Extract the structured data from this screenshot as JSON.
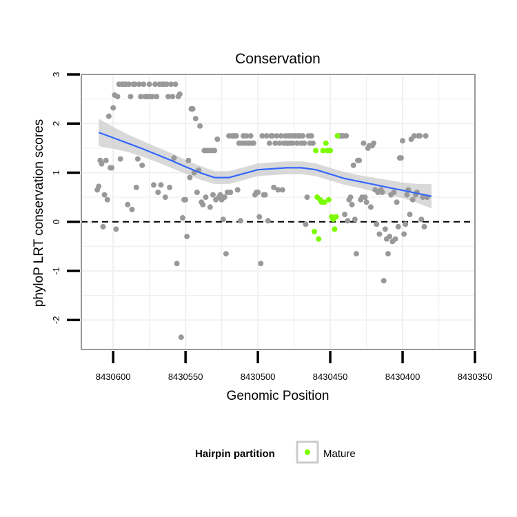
{
  "chart_data": {
    "type": "scatter",
    "title": "Conservation",
    "xlabel": "Genomic Position",
    "ylabel": "phyloP LRT conservation scores",
    "x_reversed": true,
    "xlim": [
      8430622,
      8430350
    ],
    "ylim": [
      -2.6,
      3.0
    ],
    "x_ticks": [
      8430600,
      8430550,
      8430500,
      8430450,
      8430400,
      8430350
    ],
    "x_tick_labels": [
      "8430600",
      "8430550",
      "8430500",
      "8430450",
      "8430400",
      "8430350"
    ],
    "y_ticks": [
      -2,
      -1,
      0,
      1,
      2,
      3
    ],
    "y_tick_labels": [
      "-2",
      "-1",
      "0",
      "1",
      "2",
      "3"
    ],
    "grid": true,
    "reference_line": {
      "y": 0,
      "style": "dashed"
    },
    "colors": {
      "points": "#999999",
      "mature": "#7cfc00",
      "smooth": "#3366ff",
      "ribbon": "#cccccc",
      "panel_border": "#999999",
      "grid": "#f0f0f0"
    },
    "legend": {
      "title": "Hairpin partition",
      "position": "bottom",
      "entries": [
        {
          "label": "Mature",
          "color": "#7cfc00"
        }
      ]
    },
    "series": [
      {
        "name": "Hairpin",
        "color": "#999999",
        "points": [
          [
            8430611,
            0.65
          ],
          [
            8430610,
            0.72
          ],
          [
            8430609,
            1.25
          ],
          [
            8430608,
            1.18
          ],
          [
            8430607,
            -0.1
          ],
          [
            8430606,
            0.55
          ],
          [
            8430605,
            1.25
          ],
          [
            8430604,
            0.45
          ],
          [
            8430603,
            2.15
          ],
          [
            8430602,
            1.1
          ],
          [
            8430601,
            1.1
          ],
          [
            8430600,
            2.32
          ],
          [
            8430599,
            2.58
          ],
          [
            8430598,
            -0.15
          ],
          [
            8430597,
            2.55
          ],
          [
            8430596,
            2.8
          ],
          [
            8430595,
            1.28
          ],
          [
            8430594,
            2.8
          ],
          [
            8430593,
            2.8
          ],
          [
            8430592,
            2.8
          ],
          [
            8430591,
            2.8
          ],
          [
            8430590,
            0.35
          ],
          [
            8430589,
            2.8
          ],
          [
            8430588,
            2.55
          ],
          [
            8430587,
            0.25
          ],
          [
            8430586,
            2.8
          ],
          [
            8430585,
            2.8
          ],
          [
            8430584,
            0.7
          ],
          [
            8430583,
            1.28
          ],
          [
            8430582,
            2.8
          ],
          [
            8430581,
            2.55
          ],
          [
            8430580,
            1.15
          ],
          [
            8430579,
            2.8
          ],
          [
            8430578,
            2.55
          ],
          [
            8430577,
            2.55
          ],
          [
            8430576,
            2.55
          ],
          [
            8430575,
            2.8
          ],
          [
            8430574,
            2.55
          ],
          [
            8430573,
            2.55
          ],
          [
            8430572,
            0.75
          ],
          [
            8430571,
            2.8
          ],
          [
            8430570,
            2.55
          ],
          [
            8430569,
            0.6
          ],
          [
            8430568,
            2.8
          ],
          [
            8430567,
            0.75
          ],
          [
            8430566,
            2.8
          ],
          [
            8430565,
            2.8
          ],
          [
            8430564,
            0.5
          ],
          [
            8430563,
            2.8
          ],
          [
            8430562,
            2.55
          ],
          [
            8430561,
            0.7
          ],
          [
            8430560,
            2.8
          ],
          [
            8430559,
            2.55
          ],
          [
            8430558,
            1.3
          ],
          [
            8430557,
            2.8
          ],
          [
            8430556,
            -0.85
          ],
          [
            8430555,
            2.55
          ],
          [
            8430554,
            2.6
          ],
          [
            8430553,
            -2.35
          ],
          [
            8430552,
            0.08
          ],
          [
            8430551,
            0.45
          ],
          [
            8430550,
            0.45
          ],
          [
            8430549,
            -0.3
          ],
          [
            8430548,
            1.25
          ],
          [
            8430547,
            0.9
          ],
          [
            8430546,
            2.3
          ],
          [
            8430545,
            2.3
          ],
          [
            8430544,
            1.0
          ],
          [
            8430543,
            2.1
          ],
          [
            8430542,
            0.6
          ],
          [
            8430541,
            1.05
          ],
          [
            8430540,
            1.95
          ],
          [
            8430539,
            0.4
          ],
          [
            8430538,
            0.35
          ],
          [
            8430537,
            1.45
          ],
          [
            8430536,
            0.5
          ],
          [
            8430535,
            1.45
          ],
          [
            8430534,
            1.45
          ],
          [
            8430533,
            0.3
          ],
          [
            8430532,
            1.45
          ],
          [
            8430531,
            0.55
          ],
          [
            8430530,
            1.45
          ],
          [
            8430529,
            0.45
          ],
          [
            8430528,
            1.68
          ],
          [
            8430527,
            0.5
          ],
          [
            8430526,
            0.55
          ],
          [
            8430525,
            0.45
          ],
          [
            8430524,
            0.05
          ],
          [
            8430523,
            0.5
          ],
          [
            8430522,
            -0.65
          ],
          [
            8430521,
            0.6
          ],
          [
            8430520,
            1.75
          ],
          [
            8430519,
            0.6
          ],
          [
            8430518,
            1.75
          ],
          [
            8430517,
            1.75
          ],
          [
            8430516,
            1.75
          ],
          [
            8430515,
            1.75
          ],
          [
            8430514,
            0.65
          ],
          [
            8430513,
            1.6
          ],
          [
            8430512,
            0.02
          ],
          [
            8430511,
            1.6
          ],
          [
            8430510,
            1.75
          ],
          [
            8430509,
            1.6
          ],
          [
            8430508,
            1.75
          ],
          [
            8430507,
            1.6
          ],
          [
            8430506,
            1.6
          ],
          [
            8430505,
            1.75
          ],
          [
            8430504,
            1.6
          ],
          [
            8430503,
            1.6
          ],
          [
            8430502,
            0.55
          ],
          [
            8430501,
            0.6
          ],
          [
            8430500,
            0.6
          ],
          [
            8430499,
            0.1
          ],
          [
            8430498,
            -0.85
          ],
          [
            8430497,
            1.75
          ],
          [
            8430496,
            0.55
          ],
          [
            8430495,
            0.55
          ],
          [
            8430494,
            1.75
          ],
          [
            8430493,
            0.02
          ],
          [
            8430492,
            1.6
          ],
          [
            8430491,
            1.75
          ],
          [
            8430490,
            1.75
          ],
          [
            8430489,
            0.7
          ],
          [
            8430488,
            1.6
          ],
          [
            8430487,
            1.75
          ],
          [
            8430486,
            0.65
          ],
          [
            8430485,
            1.6
          ],
          [
            8430484,
            1.75
          ],
          [
            8430483,
            0.65
          ],
          [
            8430482,
            1.6
          ],
          [
            8430481,
            1.75
          ],
          [
            8430480,
            1.6
          ],
          [
            8430479,
            1.75
          ],
          [
            8430478,
            1.6
          ],
          [
            8430477,
            1.75
          ],
          [
            8430476,
            1.6
          ],
          [
            8430475,
            1.75
          ],
          [
            8430474,
            1.75
          ],
          [
            8430473,
            1.6
          ],
          [
            8430472,
            1.75
          ],
          [
            8430471,
            1.75
          ],
          [
            8430470,
            1.6
          ],
          [
            8430469,
            1.75
          ],
          [
            8430468,
            1.6
          ],
          [
            8430467,
            -0.05
          ],
          [
            8430466,
            0.5
          ],
          [
            8430465,
            1.75
          ],
          [
            8430464,
            1.6
          ],
          [
            8430463,
            1.75
          ],
          [
            8430462,
            1.6
          ],
          [
            8430444,
            1.75
          ],
          [
            8430443,
            1.75
          ],
          [
            8430442,
            1.75
          ],
          [
            8430441,
            1.75
          ],
          [
            8430440,
            0.15
          ],
          [
            8430439,
            1.75
          ],
          [
            8430438,
            0.02
          ],
          [
            8430437,
            0.45
          ],
          [
            8430436,
            0.5
          ],
          [
            8430435,
            0.35
          ],
          [
            8430434,
            1.15
          ],
          [
            8430433,
            0.05
          ],
          [
            8430432,
            -0.65
          ],
          [
            8430431,
            1.25
          ],
          [
            8430430,
            1.25
          ],
          [
            8430429,
            0.45
          ],
          [
            8430428,
            0.5
          ],
          [
            8430427,
            1.6
          ],
          [
            8430426,
            0.5
          ],
          [
            8430425,
            0.4
          ],
          [
            8430424,
            1.5
          ],
          [
            8430423,
            1.55
          ],
          [
            8430422,
            0.3
          ],
          [
            8430421,
            1.55
          ],
          [
            8430420,
            1.6
          ],
          [
            8430419,
            0.65
          ],
          [
            8430418,
            -0.05
          ],
          [
            8430417,
            0.6
          ],
          [
            8430416,
            -0.25
          ],
          [
            8430415,
            0.65
          ],
          [
            8430414,
            0.6
          ],
          [
            8430413,
            -1.2
          ],
          [
            8430412,
            -0.15
          ],
          [
            8430411,
            -0.35
          ],
          [
            8430410,
            -0.65
          ],
          [
            8430409,
            -0.3
          ],
          [
            8430408,
            0.55
          ],
          [
            8430407,
            -0.4
          ],
          [
            8430406,
            0.6
          ],
          [
            8430405,
            -0.35
          ],
          [
            8430404,
            0.4
          ],
          [
            8430403,
            -0.1
          ],
          [
            8430402,
            1.3
          ],
          [
            8430401,
            1.3
          ],
          [
            8430400,
            1.65
          ],
          [
            8430399,
            -0.25
          ],
          [
            8430398,
            -0.05
          ],
          [
            8430397,
            0.55
          ],
          [
            8430396,
            0.65
          ],
          [
            8430395,
            0.15
          ],
          [
            8430394,
            1.68
          ],
          [
            8430393,
            0.45
          ],
          [
            8430392,
            1.75
          ],
          [
            8430391,
            0.55
          ],
          [
            8430390,
            0.6
          ],
          [
            8430389,
            1.75
          ],
          [
            8430388,
            1.75
          ],
          [
            8430387,
            0.05
          ],
          [
            8430386,
            0.5
          ],
          [
            8430385,
            -0.1
          ],
          [
            8430384,
            1.75
          ],
          [
            8430383,
            0.5
          ]
        ]
      },
      {
        "name": "Mature",
        "color": "#7cfc00",
        "points": [
          [
            8430461,
            -0.2
          ],
          [
            8430460,
            1.45
          ],
          [
            8430459,
            0.5
          ],
          [
            8430458,
            -0.35
          ],
          [
            8430457,
            0.45
          ],
          [
            8430456,
            0.4
          ],
          [
            8430455,
            1.45
          ],
          [
            8430454,
            0.4
          ],
          [
            8430453,
            1.6
          ],
          [
            8430452,
            1.45
          ],
          [
            8430451,
            0.45
          ],
          [
            8430450,
            1.45
          ],
          [
            8430449,
            0.1
          ],
          [
            8430448,
            0.05
          ],
          [
            8430447,
            -0.15
          ],
          [
            8430446,
            0.1
          ],
          [
            8430445,
            1.75
          ]
        ]
      }
    ],
    "smooth": {
      "x": [
        8430610,
        8430600,
        8430590,
        8430580,
        8430570,
        8430560,
        8430550,
        8430540,
        8430530,
        8430520,
        8430510,
        8430500,
        8430490,
        8430480,
        8430470,
        8430460,
        8430450,
        8430440,
        8430430,
        8430420,
        8430410,
        8430400,
        8430390,
        8430380
      ],
      "y": [
        1.82,
        1.71,
        1.6,
        1.49,
        1.37,
        1.25,
        1.12,
        1.0,
        0.9,
        0.9,
        0.98,
        1.06,
        1.08,
        1.1,
        1.1,
        1.06,
        0.97,
        0.88,
        0.82,
        0.76,
        0.7,
        0.64,
        0.58,
        0.52
      ],
      "ribbon_halfwidth": [
        0.28,
        0.22,
        0.18,
        0.16,
        0.15,
        0.15,
        0.14,
        0.14,
        0.13,
        0.13,
        0.13,
        0.13,
        0.13,
        0.13,
        0.13,
        0.13,
        0.13,
        0.13,
        0.13,
        0.14,
        0.15,
        0.16,
        0.19,
        0.25
      ]
    }
  }
}
